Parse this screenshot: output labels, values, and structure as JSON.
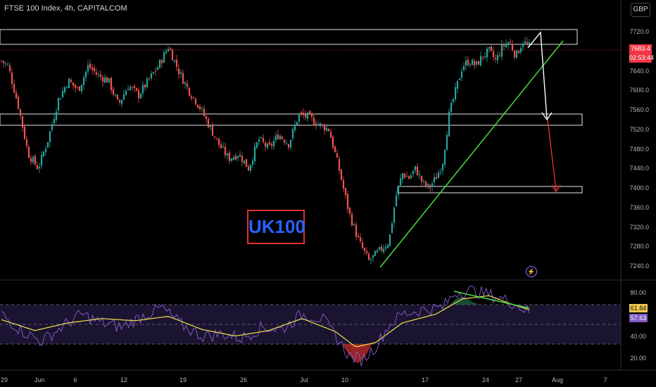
{
  "header": {
    "title": "FTSE 100 Index, 4h, CAPITALCOM",
    "currency": "GBP"
  },
  "price_axis": {
    "ticks": [
      "7720.0",
      "7680.0",
      "7640.0",
      "7600.0",
      "7560.0",
      "7520.0",
      "7480.0",
      "7440.0",
      "7400.0",
      "7360.0",
      "7320.0",
      "7280.0",
      "7240.0"
    ],
    "last_price": "7683.4",
    "countdown": "02:53:44"
  },
  "rsi_axis": {
    "ticks": [
      "80.00",
      "40.00",
      "20.00"
    ],
    "signal_value": "61.84",
    "rsi_value": "57.63"
  },
  "time_axis": {
    "ticks": [
      "29",
      "Jun",
      "6",
      "12",
      "19",
      "26",
      "Jul",
      "10",
      "17",
      "24",
      "27",
      "Aug",
      "7"
    ]
  },
  "annotation": {
    "label": "UK100"
  },
  "icons": {
    "alert": "lightning-icon"
  },
  "colors": {
    "up": "#26a69a",
    "down": "#ef5350",
    "trendline": "#44dd44",
    "rsi": "#7e57c2",
    "rsi_ma": "#f2e14c",
    "label_text": "#2962ff",
    "label_border": "#e03030"
  },
  "chart_data": {
    "type": "candlestick",
    "title": "FTSE 100 Index, 4h, CAPITALCOM",
    "ylim": [
      7215,
      7750
    ],
    "x_range": [
      "May 29",
      "Aug 7"
    ],
    "close_path": [
      [
        0,
        7660
      ],
      [
        2,
        7650
      ],
      [
        5,
        7570
      ],
      [
        8,
        7470
      ],
      [
        11,
        7440
      ],
      [
        14,
        7500
      ],
      [
        17,
        7580
      ],
      [
        20,
        7620
      ],
      [
        23,
        7600
      ],
      [
        26,
        7650
      ],
      [
        29,
        7630
      ],
      [
        32,
        7620
      ],
      [
        35,
        7570
      ],
      [
        38,
        7610
      ],
      [
        41,
        7590
      ],
      [
        44,
        7620
      ],
      [
        47,
        7650
      ],
      [
        50,
        7690
      ],
      [
        53,
        7640
      ],
      [
        56,
        7600
      ],
      [
        59,
        7570
      ],
      [
        62,
        7530
      ],
      [
        65,
        7490
      ],
      [
        68,
        7460
      ],
      [
        71,
        7470
      ],
      [
        74,
        7440
      ],
      [
        77,
        7500
      ],
      [
        80,
        7480
      ],
      [
        83,
        7510
      ],
      [
        86,
        7490
      ],
      [
        89,
        7550
      ],
      [
        92,
        7545
      ],
      [
        95,
        7530
      ],
      [
        98,
        7520
      ],
      [
        101,
        7440
      ],
      [
        104,
        7350
      ],
      [
        107,
        7290
      ],
      [
        110,
        7250
      ],
      [
        113,
        7270
      ],
      [
        116,
        7290
      ],
      [
        118,
        7380
      ],
      [
        120,
        7430
      ],
      [
        122,
        7420
      ],
      [
        124,
        7440
      ],
      [
        126,
        7410
      ],
      [
        128,
        7400
      ],
      [
        130,
        7420
      ],
      [
        132,
        7450
      ],
      [
        134,
        7550
      ],
      [
        136,
        7600
      ],
      [
        138,
        7650
      ],
      [
        140,
        7660
      ],
      [
        142,
        7650
      ],
      [
        144,
        7670
      ],
      [
        146,
        7680
      ],
      [
        148,
        7660
      ],
      [
        150,
        7690
      ],
      [
        152,
        7700
      ],
      [
        154,
        7670
      ],
      [
        156,
        7700
      ],
      [
        158,
        7690
      ]
    ],
    "zones": [
      {
        "low": 7696,
        "high": 7727
      },
      {
        "low": 7529,
        "high": 7553
      },
      {
        "low": 7394,
        "high": 7407
      }
    ],
    "rsi": {
      "levels": [
        70,
        50,
        30
      ],
      "ticks": [
        80,
        40,
        20
      ],
      "last": 57.63,
      "signal": 61.84,
      "ylim": [
        10,
        90
      ],
      "path": [
        [
          0,
          60
        ],
        [
          6,
          45
        ],
        [
          12,
          35
        ],
        [
          18,
          48
        ],
        [
          24,
          60
        ],
        [
          30,
          52
        ],
        [
          36,
          48
        ],
        [
          42,
          58
        ],
        [
          48,
          66
        ],
        [
          54,
          50
        ],
        [
          60,
          40
        ],
        [
          66,
          42
        ],
        [
          72,
          38
        ],
        [
          78,
          48
        ],
        [
          84,
          46
        ],
        [
          90,
          60
        ],
        [
          96,
          56
        ],
        [
          100,
          40
        ],
        [
          104,
          22
        ],
        [
          108,
          18
        ],
        [
          112,
          30
        ],
        [
          116,
          50
        ],
        [
          120,
          60
        ],
        [
          126,
          64
        ],
        [
          132,
          66
        ],
        [
          136,
          80
        ],
        [
          140,
          82
        ],
        [
          146,
          78
        ],
        [
          152,
          72
        ],
        [
          158,
          62
        ]
      ],
      "ma_path": [
        [
          0,
          55
        ],
        [
          10,
          45
        ],
        [
          20,
          52
        ],
        [
          30,
          56
        ],
        [
          40,
          54
        ],
        [
          50,
          58
        ],
        [
          60,
          46
        ],
        [
          70,
          40
        ],
        [
          80,
          45
        ],
        [
          90,
          56
        ],
        [
          100,
          44
        ],
        [
          106,
          30
        ],
        [
          112,
          34
        ],
        [
          120,
          52
        ],
        [
          130,
          60
        ],
        [
          138,
          74
        ],
        [
          146,
          77
        ],
        [
          152,
          70
        ],
        [
          158,
          64
        ]
      ]
    }
  }
}
